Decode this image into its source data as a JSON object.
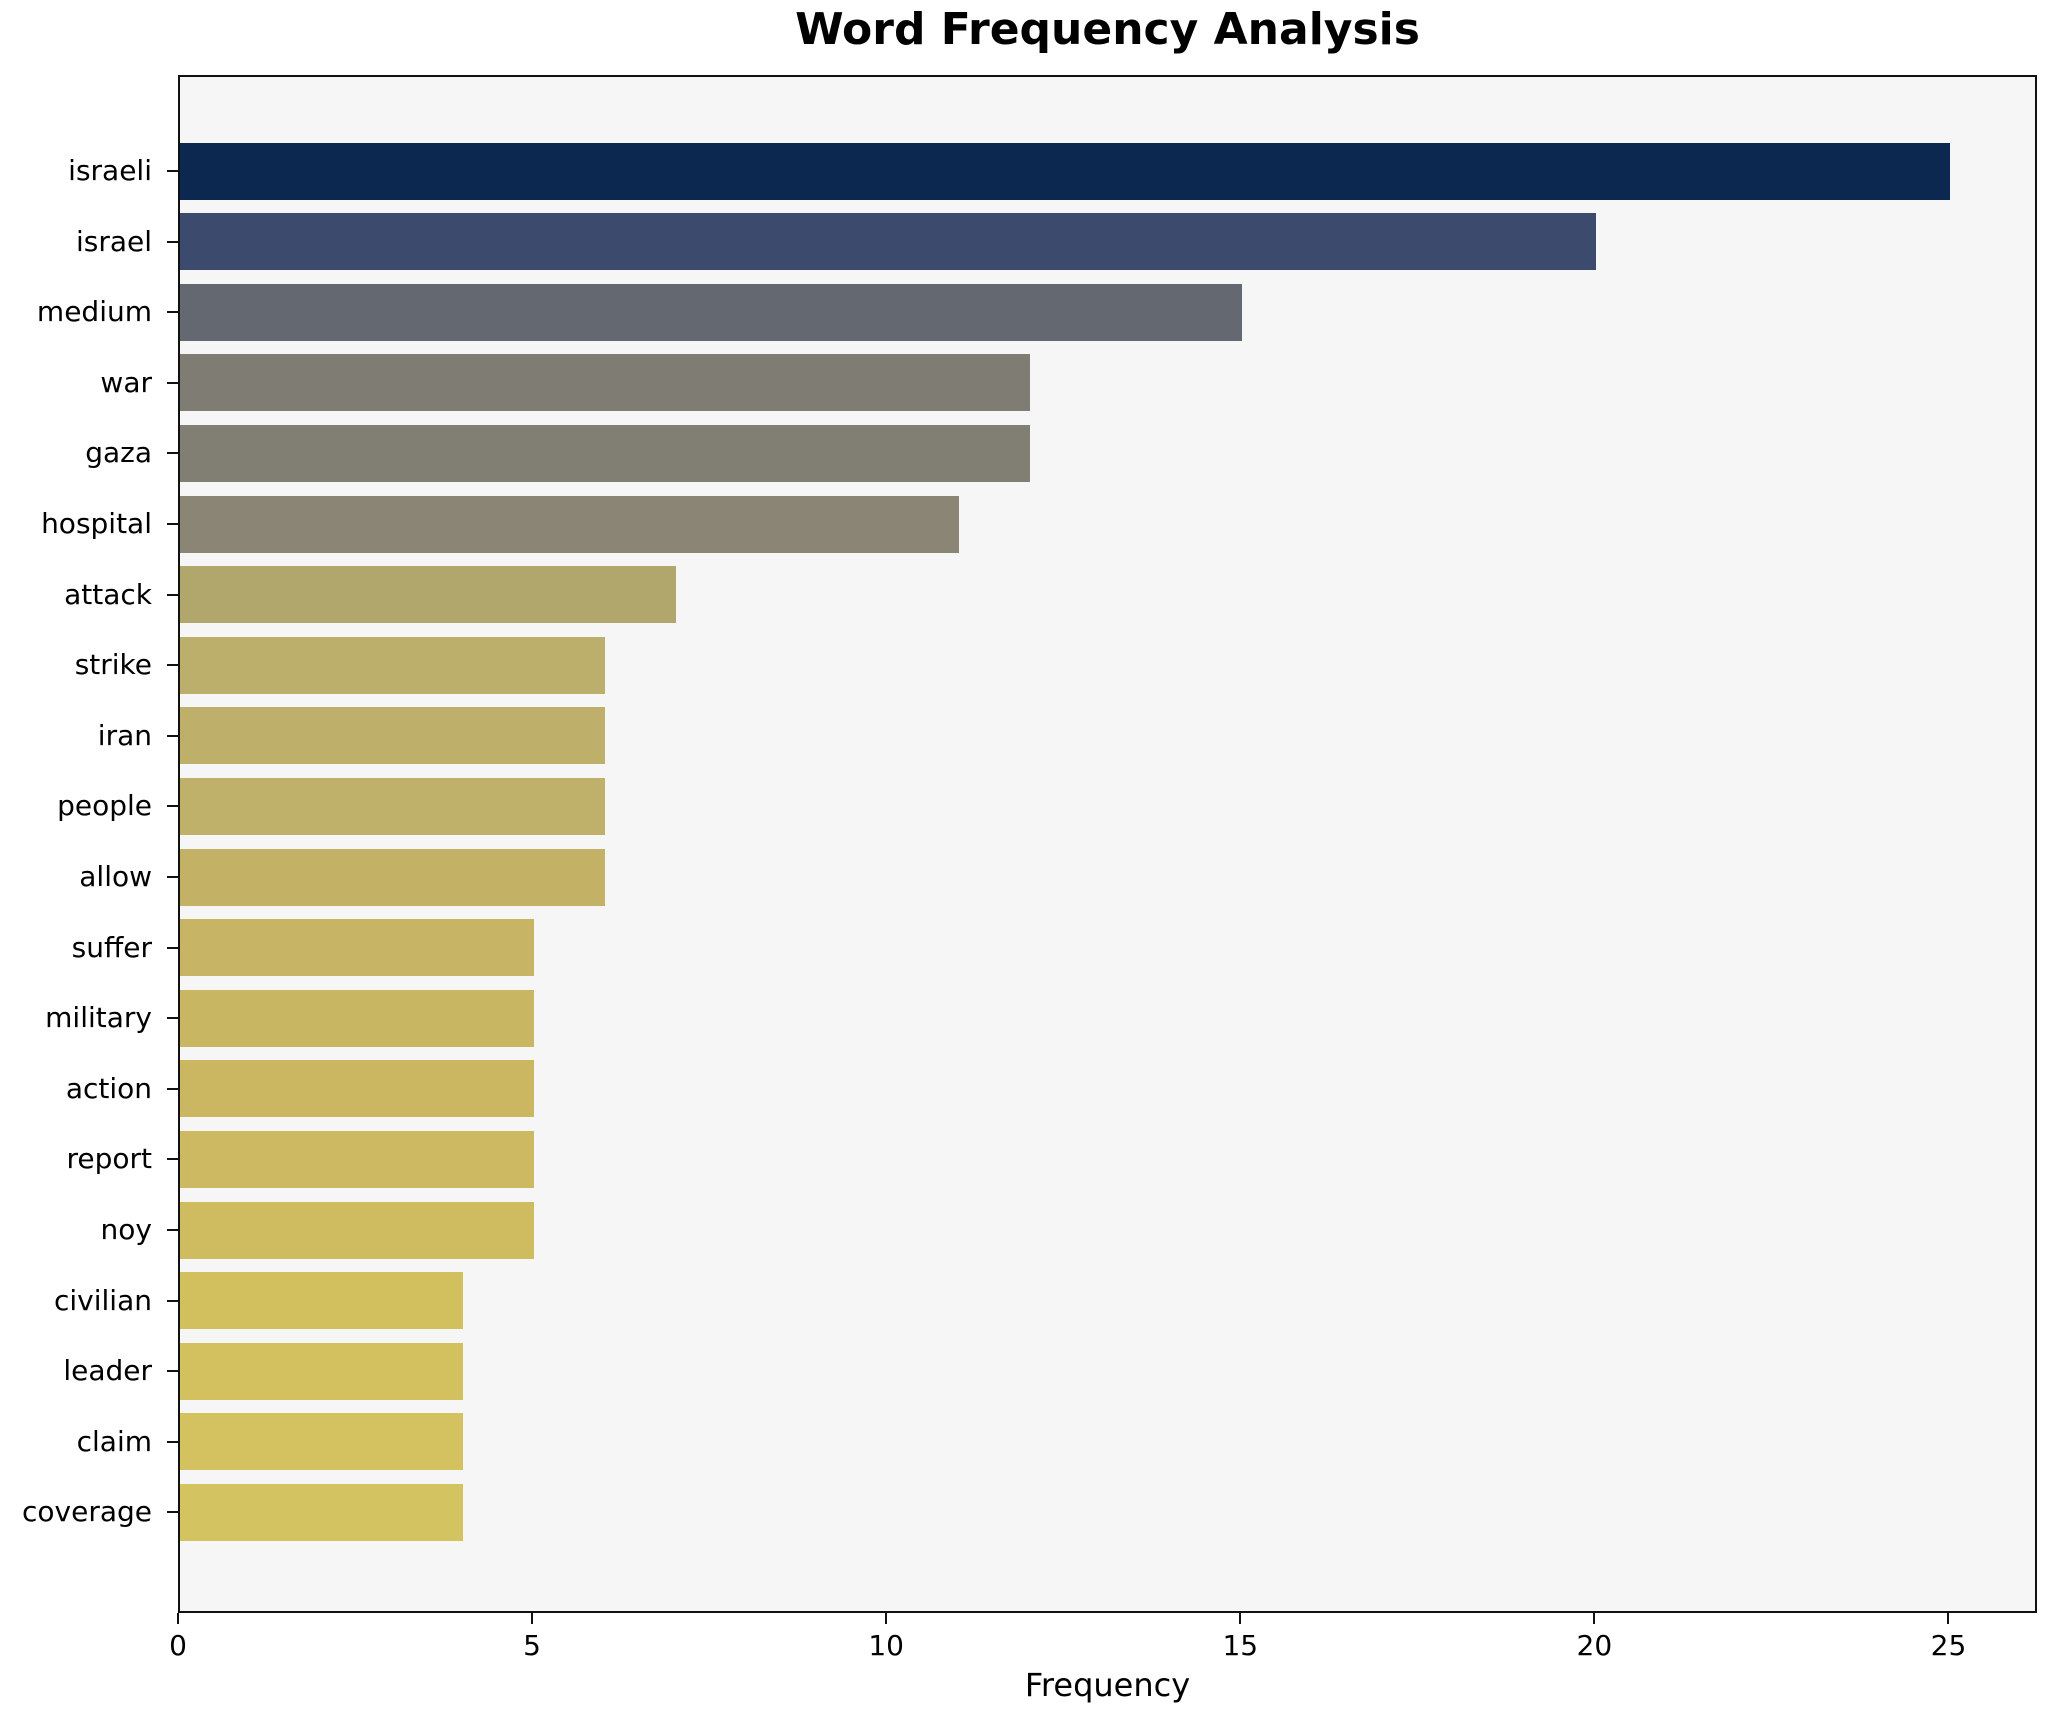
{
  "title": "Word Frequency Analysis",
  "x_axis_label": "Frequency",
  "style": {
    "figure_bg": "#ffffff",
    "plot_bg": "#f6f6f7",
    "spine_color": "#111111",
    "text_color": "#000000"
  },
  "chart_data": {
    "type": "bar",
    "orientation": "horizontal",
    "title": "Word Frequency Analysis",
    "xlabel": "Frequency",
    "ylabel": "",
    "grid": false,
    "legend": false,
    "categories": [
      "israeli",
      "israel",
      "medium",
      "war",
      "gaza",
      "hospital",
      "attack",
      "strike",
      "iran",
      "people",
      "allow",
      "suffer",
      "military",
      "action",
      "report",
      "noy",
      "civilian",
      "leader",
      "claim",
      "coverage"
    ],
    "values": [
      25,
      20,
      15,
      12,
      12,
      11,
      7,
      6,
      6,
      6,
      6,
      5,
      5,
      5,
      5,
      5,
      4,
      4,
      4,
      4
    ],
    "bar_colors": [
      "#0c2750",
      "#3b4a6d",
      "#646871",
      "#7e7c73",
      "#817e73",
      "#8a8575",
      "#b1a76c",
      "#bcae6b",
      "#beaf6a",
      "#bfb06a",
      "#c3b266",
      "#c7b464",
      "#c9b663",
      "#cbb762",
      "#cdb961",
      "#cfbb60",
      "#d2c05f",
      "#d3c160",
      "#d4c261",
      "#d4c361"
    ],
    "xticks": [
      0,
      5,
      10,
      15,
      20,
      25
    ],
    "xlim": [
      0,
      26.25
    ]
  }
}
